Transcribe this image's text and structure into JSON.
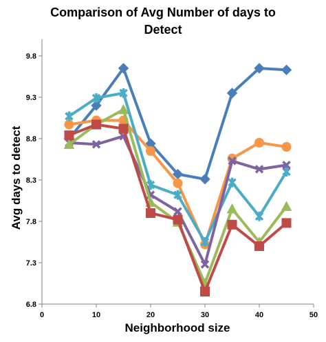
{
  "chart_data": {
    "type": "line",
    "title_lines": [
      "Comparison of Avg Number of days to",
      "Detect"
    ],
    "xlabel": "Neighborhood size",
    "ylabel": "Avg days to detect",
    "xlim": [
      0,
      50
    ],
    "ylim": [
      6.8,
      10.0
    ],
    "x_ticks": [
      0,
      10,
      20,
      30,
      40,
      50
    ],
    "y_ticks": [
      6.8,
      7.3,
      7.8,
      8.3,
      8.8,
      9.3,
      9.8
    ],
    "x": [
      5,
      10,
      15,
      20,
      25,
      30,
      35,
      40,
      45
    ],
    "grid": "none",
    "legend": "none",
    "series": [
      {
        "color": "#4a7ebb",
        "marker": "diamond",
        "values": [
          8.8,
          9.2,
          9.65,
          8.74,
          8.37,
          8.31,
          9.35,
          9.65,
          9.63
        ]
      },
      {
        "color": "#f79646",
        "marker": "circle",
        "values": [
          8.97,
          9.02,
          9.02,
          8.65,
          8.26,
          7.52,
          8.56,
          8.75,
          8.7
        ]
      },
      {
        "color": "#4bacc6",
        "marker": "star",
        "values": [
          9.07,
          9.29,
          9.35,
          8.24,
          8.12,
          7.55,
          8.27,
          7.86,
          8.4
        ]
      },
      {
        "color": "#8064a2",
        "marker": "x",
        "values": [
          8.75,
          8.73,
          8.83,
          8.12,
          7.92,
          7.28,
          8.53,
          8.43,
          8.48
        ]
      },
      {
        "color": "#9bbb59",
        "marker": "triangle",
        "values": [
          8.73,
          8.97,
          9.15,
          8.03,
          7.79,
          7.05,
          7.95,
          7.55,
          7.98
        ]
      },
      {
        "color": "#be4b48",
        "marker": "square",
        "values": [
          8.84,
          8.97,
          8.92,
          7.9,
          7.82,
          6.95,
          7.76,
          7.5,
          7.78
        ]
      }
    ]
  }
}
